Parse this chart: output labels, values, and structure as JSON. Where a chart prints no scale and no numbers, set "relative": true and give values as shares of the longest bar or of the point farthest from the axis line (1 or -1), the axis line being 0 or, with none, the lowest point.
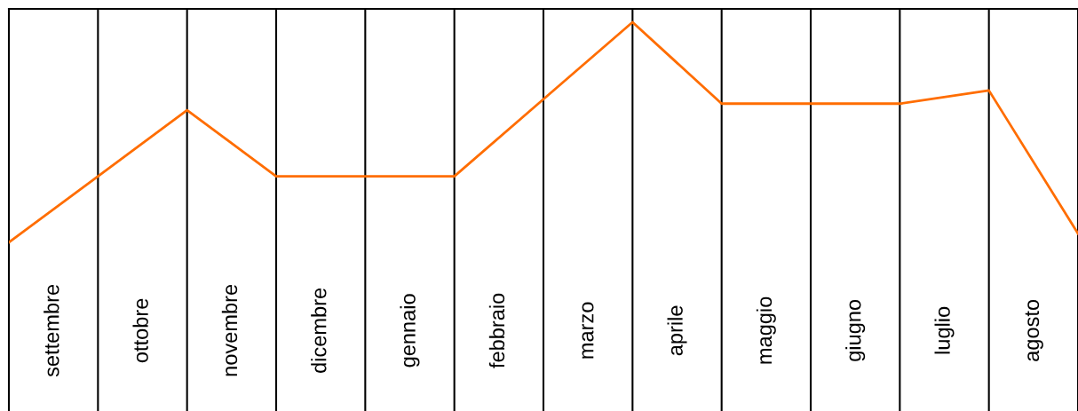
{
  "chart_data": {
    "type": "line",
    "relative": true,
    "grid": "x",
    "categories": [
      null,
      null,
      null,
      null,
      null,
      null,
      null,
      null,
      null,
      null,
      null,
      null,
      null
    ],
    "series": [
      {
        "color": "#ff6d01",
        "values": [
          0,
          0.3,
          0.6,
          0.3,
          0.3,
          0.3,
          0.65,
          1,
          0.63,
          0.63,
          0.63,
          0.69,
          0.04
        ]
      }
    ],
    "annotations": [
      "settembre",
      "ottobre",
      "novembre",
      "dicembre",
      "gennaio",
      "febbraio",
      "marzo",
      "aprile",
      "maggio",
      "giugno",
      "luglio",
      "agosto"
    ]
  }
}
